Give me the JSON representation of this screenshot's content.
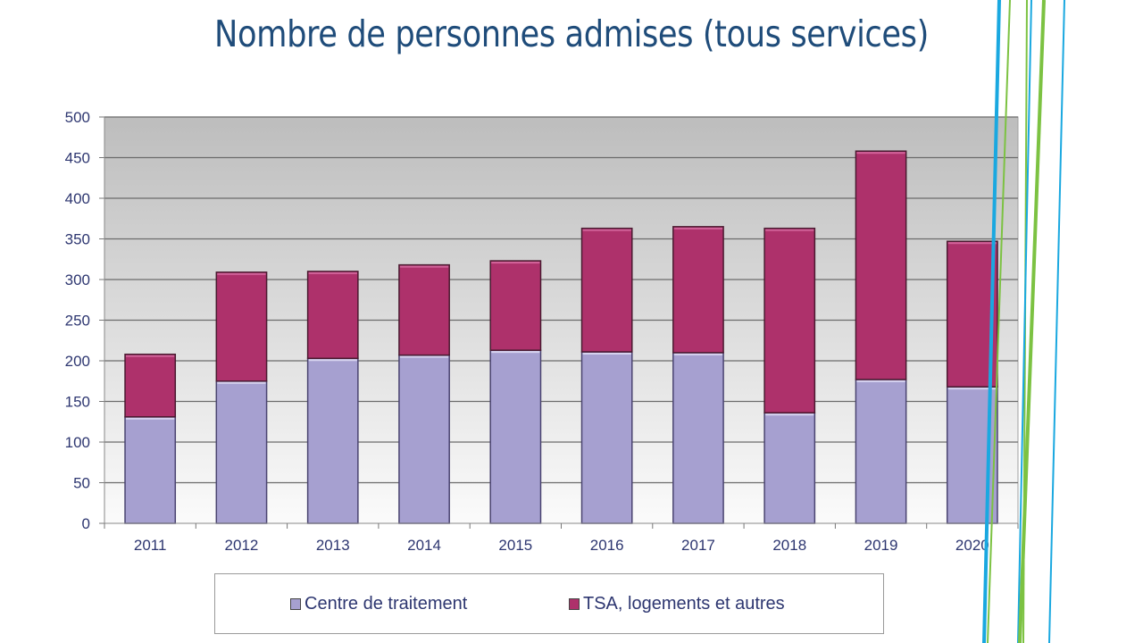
{
  "title": "Nombre de personnes admises (tous services)",
  "colors": {
    "title": "#1f4c7a",
    "series_lower": "#a6a0d0",
    "series_upper": "#ae316b",
    "axis_text": "#2d3670",
    "deco_blue": "#1aa8e0",
    "deco_green": "#7cc242"
  },
  "chart_data": {
    "type": "bar",
    "stacked": true,
    "title": "Nombre de personnes admises (tous services)",
    "xlabel": "",
    "ylabel": "",
    "categories": [
      "2011",
      "2012",
      "2013",
      "2014",
      "2015",
      "2016",
      "2017",
      "2018",
      "2019",
      "2020"
    ],
    "series": [
      {
        "name": "Centre de traitement",
        "values": [
          131,
          175,
          203,
          207,
          213,
          211,
          210,
          136,
          177,
          168
        ]
      },
      {
        "name": "TSA, logements et autres",
        "values": [
          77,
          134,
          107,
          111,
          110,
          152,
          155,
          227,
          281,
          179
        ]
      }
    ],
    "totals": [
      208,
      309,
      310,
      318,
      323,
      363,
      365,
      363,
      458,
      347
    ],
    "ylim": [
      0,
      500
    ],
    "yticks": [
      0,
      50,
      100,
      150,
      200,
      250,
      300,
      350,
      400,
      450,
      500
    ],
    "grid": true,
    "legend_position": "bottom"
  },
  "legend": {
    "items": [
      {
        "label": "Centre de traitement"
      },
      {
        "label": "TSA, logements et autres"
      }
    ]
  }
}
